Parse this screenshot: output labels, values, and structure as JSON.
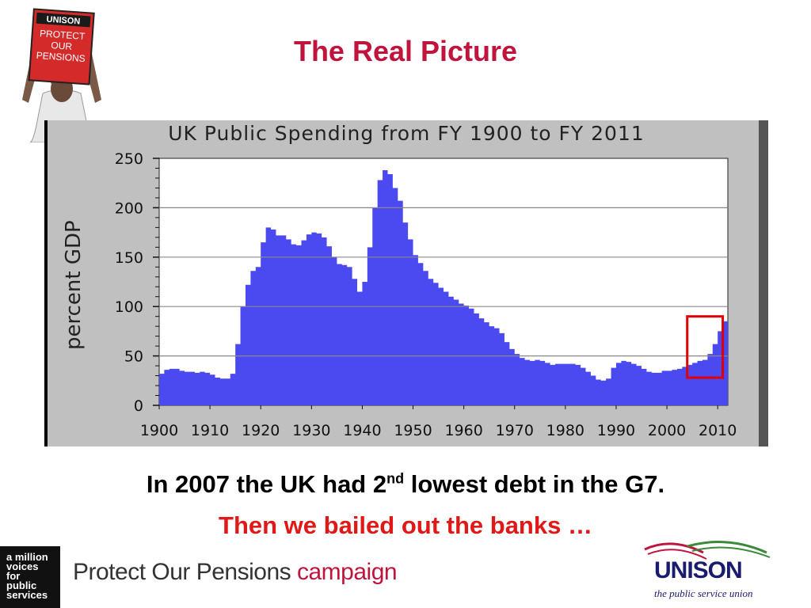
{
  "slide": {
    "title": "The Real Picture",
    "caption_line1_a": "In 2007 the UK had 2",
    "caption_line1_sup": "nd",
    "caption_line1_b": " lowest debt in the G7.",
    "caption_line2": "Then we bailed out the banks …"
  },
  "sign": {
    "line1": "UNISON",
    "line2": "PROTECT",
    "line3": "OUR",
    "line4": "PENSIONS"
  },
  "footer": {
    "badge_lines": [
      "a million",
      "voices",
      "for",
      "public",
      "services"
    ],
    "campaign_main": "Protect Our Pensions",
    "campaign_accent": "campaign",
    "union_name": "UNISON",
    "union_tagline": "the public service union"
  },
  "colors": {
    "brand_red": "#c0143c",
    "area_fill": "#4a4af0",
    "highlight_box": "#e00000",
    "panel": "#c0c0c0",
    "union_blue": "#1a1a6e"
  },
  "chart_data": {
    "type": "area",
    "title": "UK Public Spending from FY 1900 to FY 2011",
    "ylabel": "percent GDP",
    "xlabel": "",
    "xlim": [
      1900,
      2011
    ],
    "ylim": [
      0,
      250
    ],
    "xticks": [
      1900,
      1910,
      1920,
      1930,
      1940,
      1950,
      1960,
      1970,
      1980,
      1990,
      2000,
      2010
    ],
    "yticks": [
      0,
      50,
      100,
      150,
      200,
      250
    ],
    "grid": "horizontal",
    "highlight": {
      "x_from": 2004,
      "x_to": 2011,
      "y_from": 28,
      "y_to": 90
    },
    "x": [
      1900,
      1901,
      1902,
      1903,
      1904,
      1905,
      1906,
      1907,
      1908,
      1909,
      1910,
      1911,
      1912,
      1913,
      1914,
      1915,
      1916,
      1917,
      1918,
      1919,
      1920,
      1921,
      1922,
      1923,
      1924,
      1925,
      1926,
      1927,
      1928,
      1929,
      1930,
      1931,
      1932,
      1933,
      1934,
      1935,
      1936,
      1937,
      1938,
      1939,
      1940,
      1941,
      1942,
      1943,
      1944,
      1945,
      1946,
      1947,
      1948,
      1949,
      1950,
      1951,
      1952,
      1953,
      1954,
      1955,
      1956,
      1957,
      1958,
      1959,
      1960,
      1961,
      1962,
      1963,
      1964,
      1965,
      1966,
      1967,
      1968,
      1969,
      1970,
      1971,
      1972,
      1973,
      1974,
      1975,
      1976,
      1977,
      1978,
      1979,
      1980,
      1981,
      1982,
      1983,
      1984,
      1985,
      1986,
      1987,
      1988,
      1989,
      1990,
      1991,
      1992,
      1993,
      1994,
      1995,
      1996,
      1997,
      1998,
      1999,
      2000,
      2001,
      2002,
      2003,
      2004,
      2005,
      2006,
      2007,
      2008,
      2009,
      2010,
      2011
    ],
    "values": [
      32,
      36,
      37,
      37,
      35,
      34,
      34,
      33,
      34,
      33,
      31,
      28,
      27,
      27,
      32,
      62,
      100,
      122,
      136,
      140,
      165,
      180,
      178,
      172,
      172,
      168,
      163,
      162,
      167,
      173,
      175,
      174,
      170,
      161,
      150,
      143,
      142,
      140,
      128,
      115,
      125,
      160,
      200,
      228,
      238,
      234,
      220,
      207,
      185,
      168,
      152,
      144,
      136,
      128,
      124,
      119,
      115,
      110,
      107,
      103,
      101,
      98,
      93,
      88,
      84,
      80,
      78,
      73,
      64,
      57,
      52,
      48,
      46,
      45,
      46,
      45,
      43,
      41,
      42,
      42,
      42,
      42,
      41,
      38,
      34,
      30,
      26,
      25,
      27,
      38,
      43,
      45,
      44,
      42,
      40,
      37,
      34,
      33,
      33,
      35,
      35,
      36,
      37,
      39,
      41,
      43,
      45,
      46,
      52,
      62,
      75,
      85
    ]
  }
}
